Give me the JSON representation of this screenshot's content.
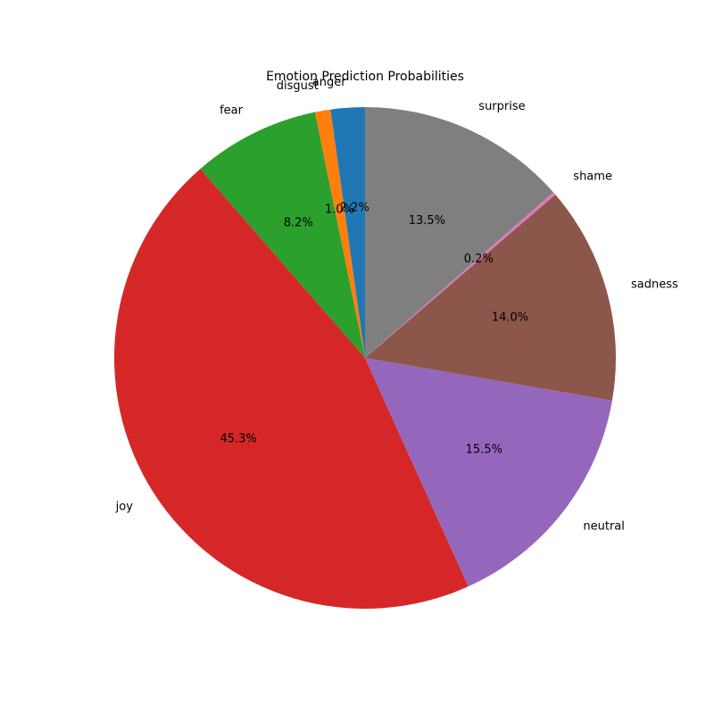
{
  "chart_data": {
    "type": "pie",
    "title": "Emotion Prediction Probabilities",
    "start_angle_deg": 90,
    "direction": "counterclockwise",
    "legend": "none",
    "slices": [
      {
        "label": "anger",
        "value": 2.2,
        "pct_label": "2.2%",
        "color": "#1f77b4"
      },
      {
        "label": "disgust",
        "value": 1.0,
        "pct_label": "1.0%",
        "color": "#ff7f0e"
      },
      {
        "label": "fear",
        "value": 8.2,
        "pct_label": "8.2%",
        "color": "#2ca02c"
      },
      {
        "label": "joy",
        "value": 45.3,
        "pct_label": "45.3%",
        "color": "#d62728"
      },
      {
        "label": "neutral",
        "value": 15.5,
        "pct_label": "15.5%",
        "color": "#9467bd"
      },
      {
        "label": "sadness",
        "value": 14.0,
        "pct_label": "14.0%",
        "color": "#8c564b"
      },
      {
        "label": "shame",
        "value": 0.2,
        "pct_label": "0.2%",
        "color": "#e377c2"
      },
      {
        "label": "surprise",
        "value": 13.5,
        "pct_label": "13.5%",
        "color": "#7f7f7f"
      }
    ]
  }
}
